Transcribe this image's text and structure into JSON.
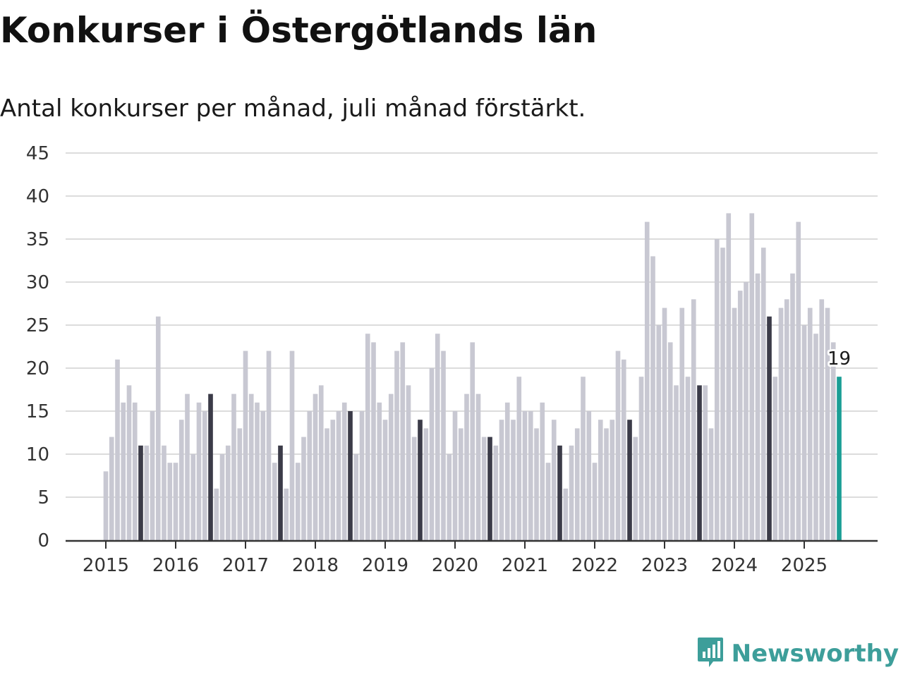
{
  "title": "Konkurser i Östergötlands län",
  "subtitle": "Antal konkurser per månad, juli månad förstärkt.",
  "brand": {
    "name": "Newsworthy",
    "icon": "newsworthy-logo-icon"
  },
  "colors": {
    "regular": "#c8c8d2",
    "july": "#3b3b48",
    "latest": "#1a9e95",
    "grid": "#dcdcdc",
    "axis": "#333333"
  },
  "chart_data": {
    "type": "bar",
    "x_start": "2015-01",
    "x_end": "2025-07",
    "values": [
      8,
      12,
      21,
      16,
      18,
      16,
      11,
      11,
      15,
      26,
      11,
      9,
      9,
      14,
      17,
      10,
      16,
      15,
      17,
      6,
      10,
      11,
      17,
      13,
      22,
      17,
      16,
      15,
      22,
      9,
      11,
      6,
      22,
      9,
      12,
      15,
      17,
      18,
      13,
      14,
      15,
      16,
      15,
      10,
      15,
      24,
      23,
      16,
      14,
      17,
      22,
      23,
      18,
      12,
      14,
      13,
      20,
      24,
      22,
      10,
      15,
      13,
      17,
      23,
      17,
      12,
      12,
      11,
      14,
      16,
      14,
      19,
      15,
      15,
      13,
      16,
      9,
      14,
      11,
      6,
      11,
      13,
      19,
      15,
      9,
      14,
      13,
      14,
      22,
      21,
      14,
      12,
      19,
      37,
      33,
      25,
      27,
      23,
      18,
      27,
      19,
      28,
      18,
      18,
      13,
      35,
      34,
      38,
      27,
      29,
      30,
      38,
      31,
      34,
      26,
      19,
      27,
      28,
      31,
      37,
      25,
      27,
      24,
      28,
      27,
      23,
      19
    ],
    "highlight": "july",
    "latest_label": "19",
    "xticks": [
      "2015",
      "2016",
      "2017",
      "2018",
      "2019",
      "2020",
      "2021",
      "2022",
      "2023",
      "2024",
      "2025"
    ],
    "yticks": [
      "0",
      "5",
      "10",
      "15",
      "20",
      "25",
      "30",
      "35",
      "40",
      "45"
    ],
    "ylim": [
      0,
      45
    ],
    "grid": true
  }
}
